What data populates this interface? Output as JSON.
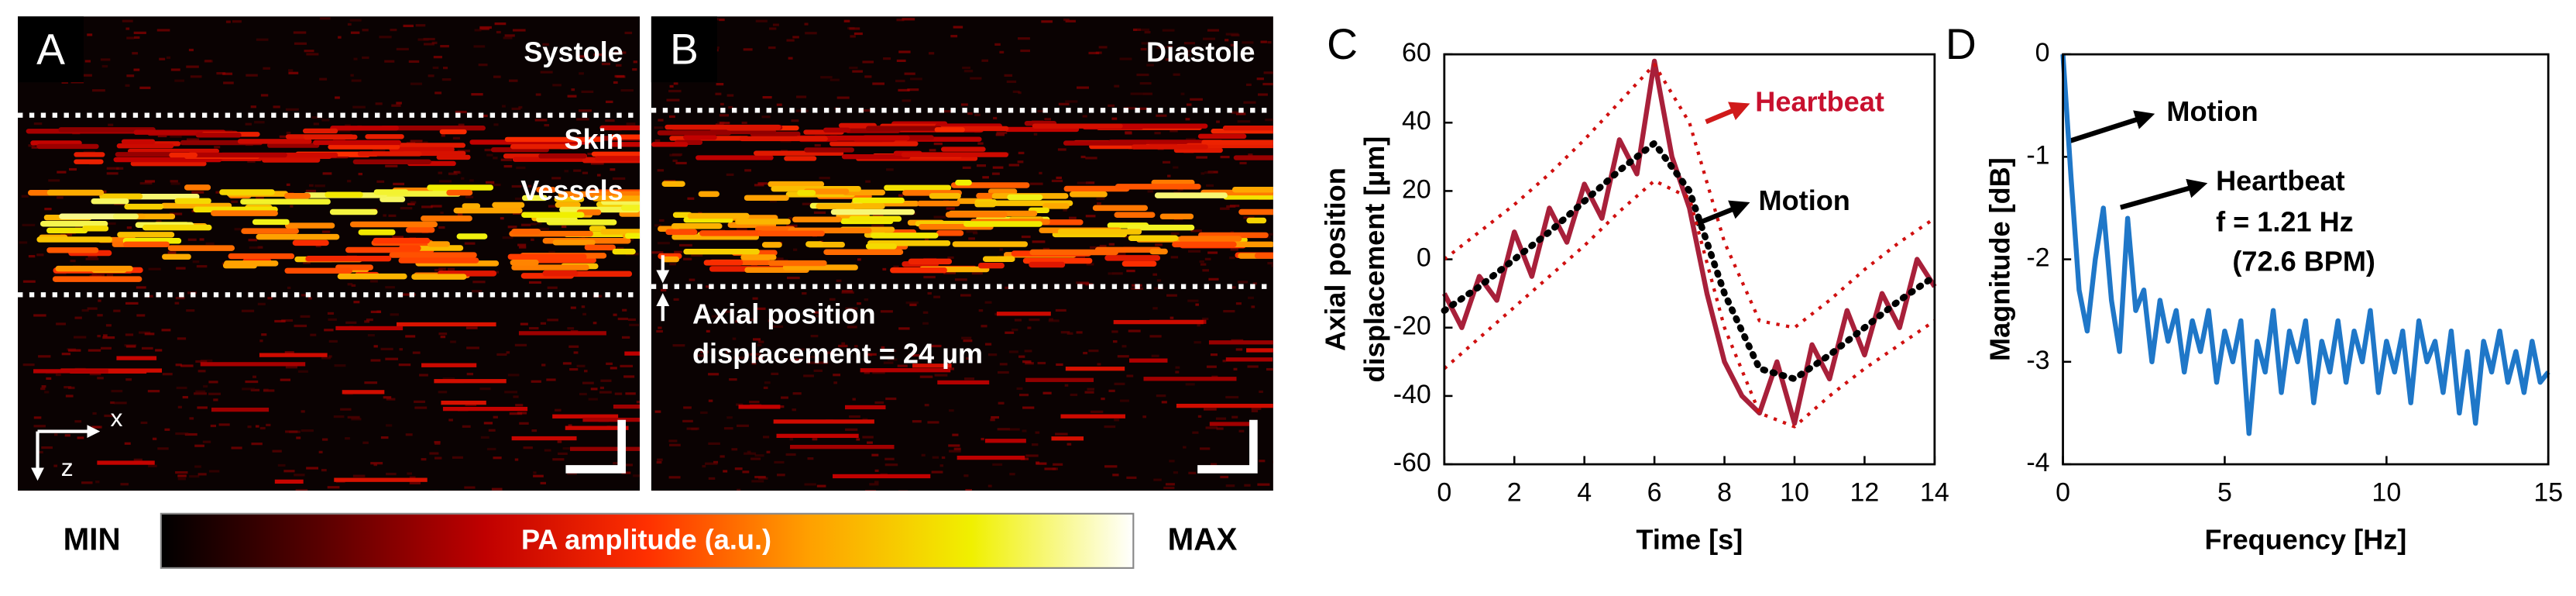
{
  "panel_a": {
    "label": "A",
    "title": "Systole",
    "annotations": [
      "Skin",
      "Vessels"
    ],
    "axes": [
      "x",
      "z"
    ]
  },
  "panel_b": {
    "label": "B",
    "title": "Diastole",
    "annotations": [
      "Axial position",
      "displacement = 24 µm"
    ]
  },
  "colorbar": {
    "min_label": "MIN",
    "max_label": "MAX",
    "label": "PA amplitude (a.u.)",
    "colors": [
      "#000000",
      "#5a0000",
      "#c00000",
      "#ff3000",
      "#ffa000",
      "#f0f000",
      "#ffffff"
    ]
  },
  "chart_data": [
    {
      "type": "line",
      "panel_label": "C",
      "x_label": "Time [s]",
      "y_label": [
        "Axial position",
        "displacement [µm]"
      ],
      "xlim": [
        0,
        14
      ],
      "xticks": [
        0,
        2,
        4,
        6,
        8,
        10,
        12,
        14
      ],
      "ylim": [
        -60,
        60
      ],
      "yticks": [
        -60,
        -40,
        -20,
        0,
        20,
        40,
        60
      ],
      "series": [
        {
          "name": "Heartbeat",
          "color": "#a8203a",
          "style": "solid",
          "x": [
            0,
            0.5,
            1,
            1.5,
            2,
            2.5,
            3,
            3.5,
            4,
            4.5,
            5,
            5.5,
            6,
            6.5,
            7,
            7.5,
            8,
            8.5,
            9,
            9.5,
            10,
            10.5,
            11,
            11.5,
            12,
            12.5,
            13,
            13.5,
            14
          ],
          "values": [
            -10,
            -20,
            -5,
            -12,
            8,
            -5,
            15,
            5,
            22,
            12,
            35,
            25,
            58,
            30,
            15,
            -10,
            -30,
            -40,
            -45,
            -30,
            -48,
            -25,
            -35,
            -15,
            -28,
            -10,
            -20,
            0,
            -8
          ]
        },
        {
          "name": "Motion",
          "color": "#000000",
          "style": "dotted",
          "x": [
            0,
            1,
            2,
            3,
            4,
            5,
            6,
            7,
            8,
            9,
            10,
            11,
            12,
            13,
            14
          ],
          "values": [
            -15,
            -8,
            0,
            8,
            17,
            26,
            34,
            20,
            -10,
            -32,
            -35,
            -28,
            -20,
            -12,
            -5
          ]
        },
        {
          "color": "#d01010",
          "style": "dotted-thin",
          "x": [
            0,
            1,
            2,
            3,
            4,
            5,
            6,
            7,
            8,
            9,
            10,
            11,
            12,
            13,
            14
          ],
          "values": [
            0,
            8,
            16,
            25,
            35,
            46,
            57,
            40,
            5,
            -18,
            -20,
            -12,
            -3,
            5,
            12
          ]
        },
        {
          "color": "#d01010",
          "style": "dotted-thin",
          "x": [
            0,
            1,
            2,
            3,
            4,
            5,
            6,
            7,
            8,
            9,
            10,
            11,
            12,
            13,
            14
          ],
          "values": [
            -32,
            -23,
            -14,
            -5,
            4,
            14,
            23,
            18,
            -20,
            -45,
            -49,
            -40,
            -32,
            -25,
            -18
          ]
        }
      ]
    },
    {
      "type": "line",
      "panel_label": "D",
      "x_label": "Frequency [Hz]",
      "y_label": [
        "Magnitude [dB]"
      ],
      "xlim": [
        0,
        15
      ],
      "xticks": [
        0,
        5,
        10,
        15
      ],
      "ylim": [
        -4,
        0
      ],
      "yticks": [
        -4,
        -3,
        -2,
        -1,
        0
      ],
      "annotations": [
        "Motion",
        "Heartbeat",
        "f = 1.21 Hz",
        "(72.6 BPM)"
      ],
      "series": [
        {
          "color": "#1f77c8",
          "style": "solid",
          "x": [
            0,
            0.25,
            0.5,
            0.75,
            1,
            1.25,
            1.5,
            1.75,
            2,
            2.25,
            2.5,
            2.75,
            3,
            3.25,
            3.5,
            3.75,
            4,
            4.25,
            4.5,
            4.75,
            5,
            5.25,
            5.5,
            5.75,
            6,
            6.25,
            6.5,
            6.75,
            7,
            7.25,
            7.5,
            7.75,
            8,
            8.25,
            8.5,
            8.75,
            9,
            9.25,
            9.5,
            9.75,
            10,
            10.25,
            10.5,
            10.75,
            11,
            11.25,
            11.5,
            11.75,
            12,
            12.25,
            12.5,
            12.75,
            13,
            13.25,
            13.5,
            13.75,
            14,
            14.25,
            14.5,
            14.75,
            15
          ],
          "values": [
            0,
            -1.2,
            -2.3,
            -2.7,
            -2.0,
            -1.5,
            -2.4,
            -2.9,
            -1.6,
            -2.5,
            -2.3,
            -3.0,
            -2.4,
            -2.8,
            -2.5,
            -3.1,
            -2.6,
            -2.9,
            -2.5,
            -3.2,
            -2.7,
            -3.0,
            -2.6,
            -3.7,
            -2.8,
            -3.1,
            -2.5,
            -3.3,
            -2.7,
            -3.0,
            -2.6,
            -3.4,
            -2.8,
            -3.1,
            -2.6,
            -3.2,
            -2.7,
            -3.0,
            -2.5,
            -3.3,
            -2.8,
            -3.1,
            -2.7,
            -3.4,
            -2.6,
            -3.0,
            -2.8,
            -3.3,
            -2.7,
            -3.5,
            -2.9,
            -3.6,
            -2.8,
            -3.1,
            -2.7,
            -3.2,
            -2.9,
            -3.3,
            -2.8,
            -3.2,
            -3.1
          ]
        }
      ]
    }
  ]
}
